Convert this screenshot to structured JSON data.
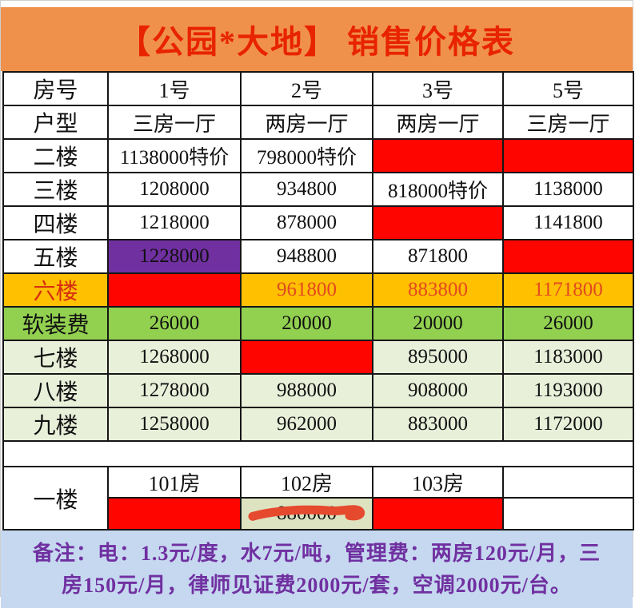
{
  "title": "【公园*大地】 销售价格表",
  "header_row": {
    "label": "房号",
    "columns": [
      "1号",
      "2号",
      "3号",
      "5号"
    ]
  },
  "unit_row": {
    "label": "户型",
    "cells": [
      "三房一厅",
      "两房一厅",
      "两房一厅",
      "三房一厅"
    ]
  },
  "floor_rows": [
    {
      "label": "二楼",
      "row_style": "white",
      "cells": [
        {
          "text": "1138000特价",
          "style": "special"
        },
        {
          "text": "798000特价",
          "style": "special"
        },
        {
          "text": "",
          "style": "sold"
        },
        {
          "text": "",
          "style": "sold"
        }
      ]
    },
    {
      "label": "三楼",
      "row_style": "white",
      "cells": [
        {
          "text": "1208000",
          "style": "plain"
        },
        {
          "text": "934800",
          "style": "plain"
        },
        {
          "text": "818000特价",
          "style": "special"
        },
        {
          "text": "1138000",
          "style": "plain"
        }
      ]
    },
    {
      "label": "四楼",
      "row_style": "white",
      "cells": [
        {
          "text": "1218000",
          "style": "plain"
        },
        {
          "text": "878000",
          "style": "plain"
        },
        {
          "text": "",
          "style": "sold"
        },
        {
          "text": "1141800",
          "style": "plain"
        }
      ]
    },
    {
      "label": "五楼",
      "row_style": "white",
      "cells": [
        {
          "text": "1228000",
          "style": "purple"
        },
        {
          "text": "948800",
          "style": "plain"
        },
        {
          "text": "871800",
          "style": "plain"
        },
        {
          "text": "",
          "style": "sold"
        }
      ]
    },
    {
      "label": "六楼",
      "row_style": "gold",
      "cells": [
        {
          "text": "",
          "style": "sold"
        },
        {
          "text": "961800",
          "style": "gold-num"
        },
        {
          "text": "883800",
          "style": "gold-num"
        },
        {
          "text": "1171800",
          "style": "gold-num"
        }
      ]
    },
    {
      "label": "软装费",
      "row_style": "green",
      "cells": [
        {
          "text": "26000",
          "style": "plain"
        },
        {
          "text": "20000",
          "style": "plain"
        },
        {
          "text": "20000",
          "style": "plain"
        },
        {
          "text": "26000",
          "style": "plain"
        }
      ]
    },
    {
      "label": "七楼",
      "row_style": "lightgreen",
      "cells": [
        {
          "text": "1268000",
          "style": "plain"
        },
        {
          "text": "",
          "style": "sold"
        },
        {
          "text": "895000",
          "style": "plain"
        },
        {
          "text": "1183000",
          "style": "plain"
        }
      ]
    },
    {
      "label": "八楼",
      "row_style": "lightgreen",
      "cells": [
        {
          "text": "1278000",
          "style": "plain"
        },
        {
          "text": "988000",
          "style": "plain"
        },
        {
          "text": "908000",
          "style": "plain"
        },
        {
          "text": "1193000",
          "style": "plain"
        }
      ]
    },
    {
      "label": "九楼",
      "row_style": "lightgreen",
      "cells": [
        {
          "text": "1258000",
          "style": "plain"
        },
        {
          "text": "962000",
          "style": "plain"
        },
        {
          "text": "883000",
          "style": "plain"
        },
        {
          "text": "1172000",
          "style": "plain"
        }
      ]
    }
  ],
  "ground_floor": {
    "label": "一楼",
    "room_headers": [
      "101房",
      "102房",
      "103房",
      ""
    ],
    "price_cells": [
      {
        "text": "",
        "style": "sold"
      },
      {
        "text": "880000",
        "style": "crossed"
      },
      {
        "text": "",
        "style": "sold"
      },
      {
        "text": "",
        "style": "empty"
      }
    ]
  },
  "note": {
    "line1": "备注：电：1.3元/度，水7元/吨，管理费：两房120元/月，三",
    "line2": "房150元/月，律师见证费2000元/套，空调2000元/台。"
  },
  "colors": {
    "banner_bg": "#F0914B",
    "title_red": "#E82300",
    "sold_red": "#FE0500",
    "special_price_red": "#D32A1E",
    "purple_cell": "#7030A0",
    "gold_row": "#FFC000",
    "gold_number_text": "#E2491F",
    "green_row": "#92D050",
    "light_green_row": "#E9F0DA",
    "crossed_cell_bg": "#DDE3C1",
    "scribble_red": "#E64A2E",
    "note_bg": "#C5D8F0",
    "note_text": "#7030A0"
  }
}
